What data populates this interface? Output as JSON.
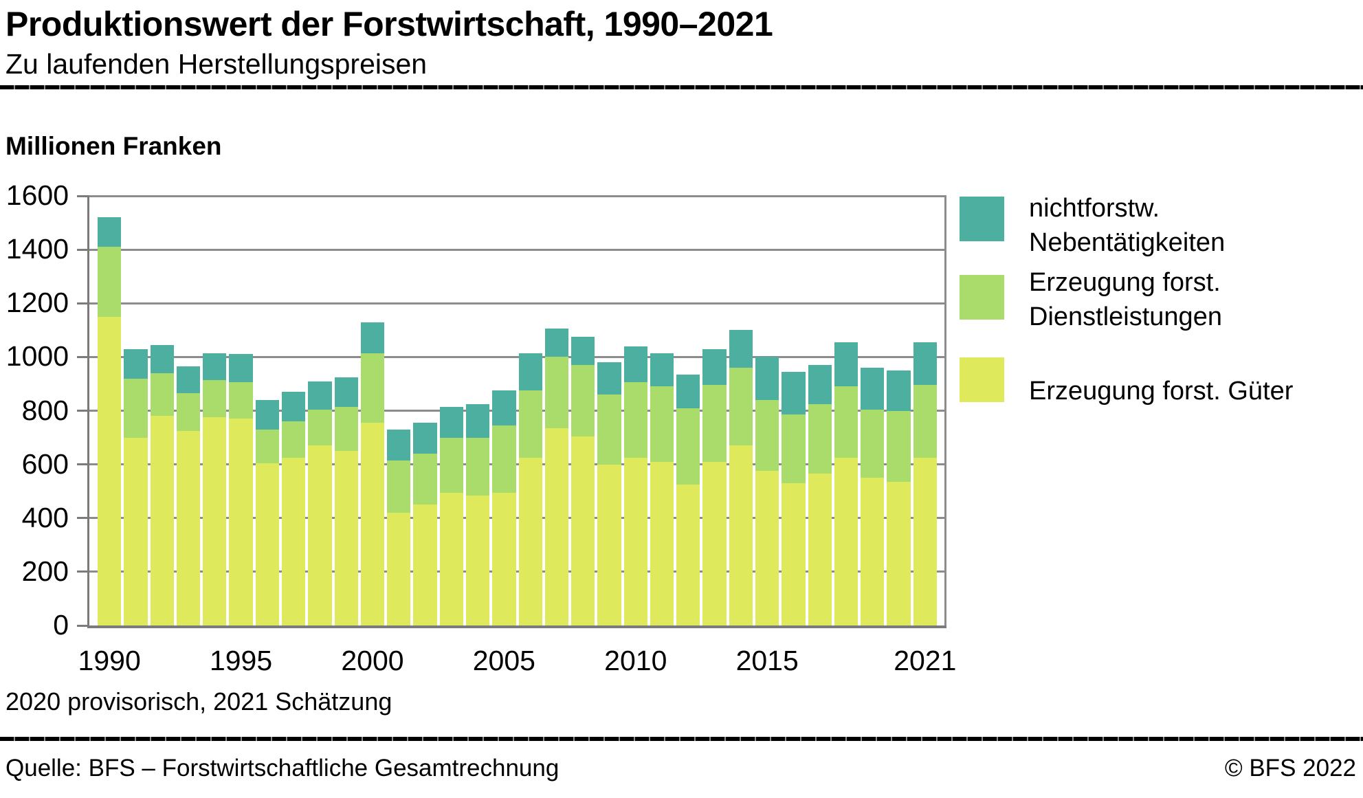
{
  "title": "Produktionswert der Forstwirtschaft, 1990–2021",
  "subtitle": "Zu laufenden Herstellungspreisen",
  "y_axis_title": "Millionen Franken",
  "footnote": "2020 provisorisch, 2021 Schätzung",
  "source": "Quelle: BFS – Forstwirtschaftliche Gesamtrechnung",
  "copyright": "© BFS 2022",
  "colors": {
    "goods": "#dfe95c",
    "services": "#a9dc6a",
    "secondary": "#4daf9f",
    "grid": "#8c8c8c",
    "axis": "#7b7b7b"
  },
  "chart_data": {
    "type": "bar",
    "stacked": true,
    "title": "Produktionswert der Forstwirtschaft, 1990–2021",
    "subtitle": "Zu laufenden Herstellungspreisen",
    "xlabel": "",
    "ylabel": "Millionen Franken",
    "unit": "Millionen Franken",
    "ylim": [
      0,
      1600
    ],
    "yticks": [
      0,
      200,
      400,
      600,
      800,
      1000,
      1200,
      1400,
      1600
    ],
    "grid": "horizontal",
    "legend_position": "right",
    "categories": [
      1990,
      1991,
      1992,
      1993,
      1994,
      1995,
      1996,
      1997,
      1998,
      1999,
      2000,
      2001,
      2002,
      2003,
      2004,
      2005,
      2006,
      2007,
      2008,
      2009,
      2010,
      2011,
      2012,
      2013,
      2014,
      2015,
      2016,
      2017,
      2018,
      2019,
      2020,
      2021
    ],
    "xtick_years": [
      1990,
      1995,
      2000,
      2005,
      2010,
      2015,
      2021
    ],
    "series": [
      {
        "key": "goods",
        "name": "Erzeugung forst. Güter",
        "color": "#dfe95c",
        "values": [
          1150,
          700,
          780,
          725,
          775,
          770,
          605,
          625,
          670,
          650,
          755,
          420,
          450,
          495,
          485,
          495,
          625,
          735,
          705,
          600,
          625,
          610,
          525,
          610,
          670,
          575,
          530,
          565,
          625,
          550,
          535,
          625
        ]
      },
      {
        "key": "services",
        "name": "Erzeugung forst. Dienstleistungen",
        "color": "#a9dc6a",
        "values": [
          260,
          220,
          160,
          140,
          140,
          135,
          125,
          135,
          135,
          165,
          260,
          195,
          190,
          205,
          215,
          250,
          250,
          265,
          265,
          260,
          280,
          280,
          285,
          285,
          290,
          265,
          255,
          260,
          265,
          255,
          265,
          270
        ]
      },
      {
        "key": "secondary",
        "name": "nichtforstw. Nebentätigkeiten",
        "color": "#4daf9f",
        "values": [
          110,
          110,
          105,
          100,
          100,
          105,
          110,
          110,
          105,
          110,
          115,
          115,
          115,
          115,
          125,
          130,
          140,
          105,
          105,
          120,
          135,
          125,
          125,
          135,
          140,
          160,
          160,
          145,
          165,
          155,
          150,
          160
        ]
      }
    ],
    "legend": [
      {
        "key": "secondary",
        "color": "#4daf9f",
        "lines": [
          "nichtforstw.",
          "Nebentätigkeiten"
        ],
        "top": 278,
        "swatch_offset": 8,
        "text_offset": 0
      },
      {
        "key": "services",
        "color": "#a9dc6a",
        "lines": [
          "Erzeugung forst.",
          "Dienstleistungen"
        ],
        "top": 386,
        "swatch_offset": 14,
        "text_offset": 0
      },
      {
        "key": "goods",
        "color": "#dfe95c",
        "lines": [
          "Erzeugung forst. Güter"
        ],
        "top": 520,
        "swatch_offset": 0,
        "text_offset": 24
      }
    ]
  }
}
